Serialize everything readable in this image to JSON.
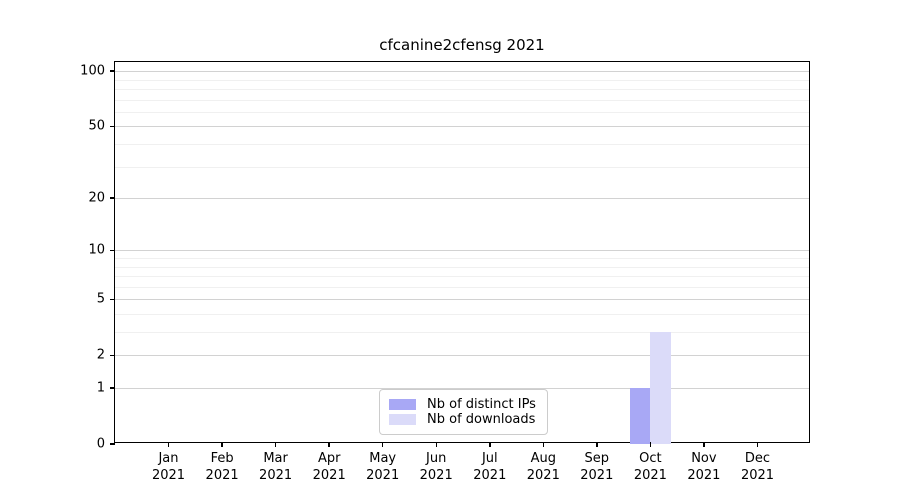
{
  "title": "cfcanine2cfensg 2021",
  "chart_data": {
    "type": "bar",
    "title": "cfcanine2cfensg 2021",
    "year_label": "2021",
    "categories": [
      "Jan",
      "Feb",
      "Mar",
      "Apr",
      "May",
      "Jun",
      "Jul",
      "Aug",
      "Sep",
      "Oct",
      "Nov",
      "Dec"
    ],
    "series": [
      {
        "name": "Nb of distinct IPs",
        "color": "#a8a8f5",
        "values": [
          0,
          0,
          0,
          0,
          0,
          0,
          0,
          0,
          0,
          1,
          0,
          0
        ]
      },
      {
        "name": "Nb of downloads",
        "color": "#dbdbf9",
        "values": [
          0,
          0,
          0,
          0,
          0,
          0,
          0,
          0,
          0,
          3,
          0,
          0
        ]
      }
    ],
    "yscale": "log10(1+v)",
    "ylim": [
      0,
      112
    ],
    "yticks": [
      0,
      1,
      2,
      5,
      10,
      20,
      50,
      100
    ],
    "yminorticks": [
      3,
      4,
      6,
      7,
      8,
      9,
      30,
      40,
      60,
      70,
      80,
      90
    ],
    "xlabel": "",
    "ylabel": "",
    "grid": true,
    "legend_position": "lower center",
    "legend_entries": [
      "Nb of distinct IPs",
      "Nb of downloads"
    ]
  },
  "colors": {
    "background": "#ffffff",
    "spine": "#000000",
    "major_grid": "#d2d2d2",
    "minor_grid": "#f0f0f0",
    "legend_border": "#cccccc",
    "distinct_ips_bar": "#a8a8f5",
    "downloads_bar": "#dbdbf9"
  }
}
